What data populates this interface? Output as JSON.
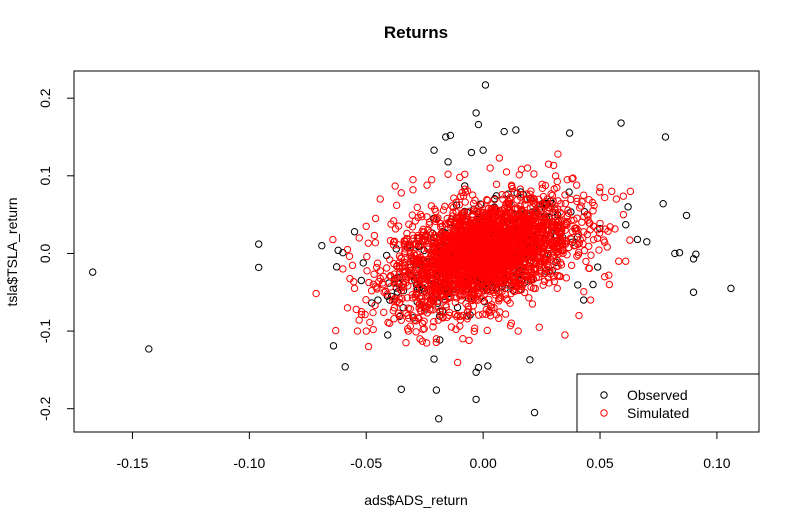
{
  "chart_data": {
    "type": "scatter",
    "title": "Returns",
    "xlabel": "ads$ADS_return",
    "ylabel": "tsla$TSLA_return",
    "xlim": [
      -0.175,
      0.118
    ],
    "ylim": [
      -0.23,
      0.235
    ],
    "x_ticks": [
      -0.15,
      -0.1,
      -0.05,
      0.0,
      0.05,
      0.1
    ],
    "x_tick_labels": [
      "-0.15",
      "-0.10",
      "-0.05",
      "0.00",
      "0.05",
      "0.10"
    ],
    "y_ticks": [
      -0.2,
      -0.1,
      0.0,
      0.1,
      0.2
    ],
    "y_tick_labels": [
      "-0.2",
      "-0.1",
      "0.0",
      "0.1",
      "0.2"
    ],
    "grid": false,
    "legend_position": "bottom-right",
    "series": [
      {
        "name": "Observed",
        "color": "#000000",
        "marker": "open-circle",
        "points": [
          [
            -0.167,
            -0.024
          ],
          [
            -0.143,
            -0.123
          ],
          [
            -0.096,
            0.012
          ],
          [
            -0.096,
            -0.018
          ],
          [
            -0.069,
            0.01
          ],
          [
            -0.064,
            -0.119
          ],
          [
            -0.059,
            -0.146
          ],
          [
            -0.062,
            0.004
          ],
          [
            -0.06,
            0.001
          ],
          [
            -0.055,
            0.028
          ],
          [
            -0.035,
            -0.175
          ],
          [
            -0.02,
            -0.176
          ],
          [
            -0.019,
            -0.213
          ],
          [
            -0.003,
            -0.188
          ],
          [
            -0.003,
            -0.153
          ],
          [
            -0.002,
            -0.147
          ],
          [
            0.002,
            -0.145
          ],
          [
            0.022,
            -0.205
          ],
          [
            0.02,
            -0.137
          ],
          [
            -0.021,
            -0.136
          ],
          [
            0.001,
            0.217
          ],
          [
            -0.003,
            0.181
          ],
          [
            -0.002,
            0.166
          ],
          [
            -0.016,
            0.15
          ],
          [
            -0.014,
            0.152
          ],
          [
            0.009,
            0.157
          ],
          [
            0.014,
            0.159
          ],
          [
            0.037,
            0.155
          ],
          [
            0.059,
            0.168
          ],
          [
            0.078,
            0.15
          ],
          [
            -0.021,
            0.133
          ],
          [
            0.0,
            0.133
          ],
          [
            -0.005,
            0.13
          ],
          [
            -0.015,
            0.118
          ],
          [
            0.077,
            0.064
          ],
          [
            0.087,
            0.049
          ],
          [
            0.062,
            0.06
          ],
          [
            0.061,
            0.037
          ],
          [
            0.066,
            0.018
          ],
          [
            0.07,
            0.015
          ],
          [
            0.082,
            0.0
          ],
          [
            0.084,
            0.001
          ],
          [
            0.09,
            -0.007
          ],
          [
            0.091,
            -0.001
          ],
          [
            0.09,
            -0.05
          ],
          [
            0.106,
            -0.045
          ],
          [
            -0.045,
            -0.06
          ],
          [
            -0.041,
            -0.055
          ],
          [
            0.043,
            -0.06
          ],
          [
            0.047,
            -0.04
          ]
        ]
      },
      {
        "name": "Simulated",
        "color": "#ff0000",
        "marker": "open-circle",
        "points": [
          [
            -0.055,
            -0.045
          ],
          [
            -0.052,
            -0.075
          ],
          [
            -0.049,
            -0.12
          ],
          [
            -0.047,
            -0.098
          ],
          [
            -0.05,
            0.035
          ],
          [
            -0.046,
            0.045
          ],
          [
            -0.04,
            -0.09
          ],
          [
            -0.037,
            0.062
          ],
          [
            -0.035,
            0.078
          ],
          [
            -0.03,
            0.082
          ],
          [
            -0.027,
            -0.11
          ],
          [
            -0.024,
            0.088
          ],
          [
            -0.022,
            0.095
          ],
          [
            -0.02,
            -0.11
          ],
          [
            -0.015,
            0.102
          ],
          [
            -0.01,
            0.098
          ],
          [
            -0.006,
            -0.112
          ],
          [
            0.003,
            0.11
          ],
          [
            0.01,
            0.105
          ],
          [
            0.015,
            -0.1
          ],
          [
            0.019,
            0.11
          ],
          [
            0.024,
            -0.095
          ],
          [
            0.032,
            0.128
          ],
          [
            0.036,
            0.095
          ],
          [
            0.04,
            0.088
          ],
          [
            0.043,
            0.075
          ],
          [
            0.046,
            -0.06
          ],
          [
            0.05,
            0.085
          ],
          [
            0.052,
            -0.03
          ],
          [
            0.055,
            0.08
          ],
          [
            0.057,
            0.07
          ],
          [
            0.06,
            0.05
          ],
          [
            0.063,
            0.08
          ],
          [
            0.058,
            -0.01
          ],
          [
            0.054,
            -0.04
          ],
          [
            -0.058,
            -0.07
          ],
          [
            -0.053,
            0.02
          ],
          [
            -0.06,
            -0.02
          ],
          [
            0.035,
            -0.105
          ],
          [
            -0.032,
            -0.1
          ],
          [
            -0.044,
            0.07
          ],
          [
            -0.033,
            -0.115
          ],
          [
            0.028,
            0.115
          ],
          [
            0.052,
            0.072
          ],
          [
            0.061,
            -0.01
          ],
          [
            -0.058,
            0.005
          ],
          [
            0.047,
            0.055
          ],
          [
            -0.05,
            -0.1
          ],
          [
            0.041,
            -0.08
          ],
          [
            -0.03,
            0.095
          ]
        ]
      }
    ]
  },
  "legend": {
    "items": [
      {
        "label": "Observed",
        "color": "#000000"
      },
      {
        "label": "Simulated",
        "color": "#ff0000"
      }
    ]
  }
}
